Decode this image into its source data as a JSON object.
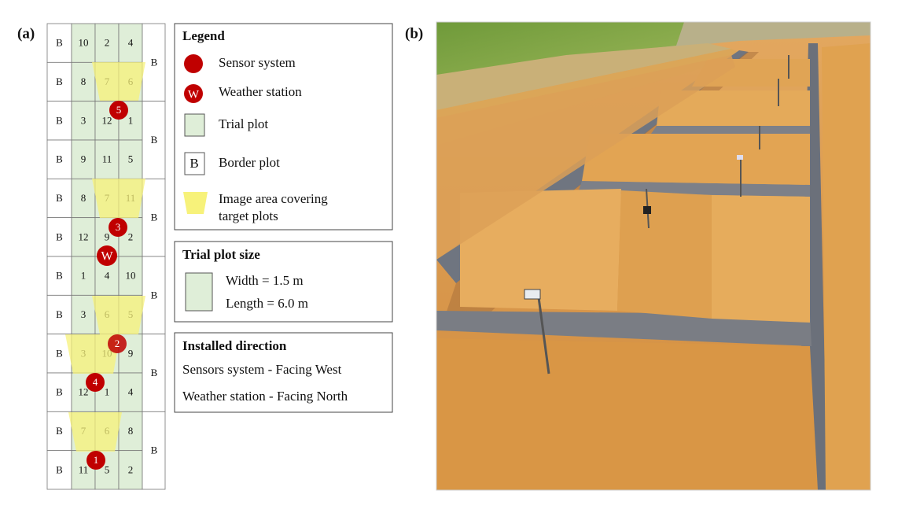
{
  "panel_a": {
    "label": "(a)",
    "grid": {
      "rows": [
        [
          "B",
          "10",
          "2",
          "4"
        ],
        [
          "B",
          "8",
          "7",
          "6"
        ],
        [
          "B",
          "3",
          "12",
          "1"
        ],
        [
          "B",
          "9",
          "11",
          "5"
        ],
        [
          "B",
          "8",
          "7",
          "11"
        ],
        [
          "B",
          "12",
          "9",
          "2"
        ],
        [
          "B",
          "1",
          "4",
          "10"
        ],
        [
          "B",
          "3",
          "6",
          "5"
        ],
        [
          "B",
          "3",
          "10",
          "9"
        ],
        [
          "B",
          "12",
          "1",
          "4"
        ],
        [
          "B",
          "7",
          "6",
          "8"
        ],
        [
          "B",
          "11",
          "5",
          "2"
        ]
      ],
      "right_border": [
        "B",
        "B",
        "B",
        "B",
        "B",
        "B"
      ]
    },
    "sensors": [
      "5",
      "3",
      "2",
      "4",
      "1"
    ],
    "weather": "W",
    "legend": {
      "title": "Legend",
      "sensor": "Sensor system",
      "weather_icon": "W",
      "weather": "Weather station",
      "trial": "Trial plot",
      "border_icon": "B",
      "border": "Border plot",
      "image_area": [
        "Image area covering",
        "target plots"
      ]
    },
    "plot_size": {
      "title": "Trial plot size",
      "width": "Width = 1.5 m",
      "length": "Length = 6.0 m"
    },
    "direction": {
      "title": "Installed direction",
      "lines": [
        "Sensors system - Facing West",
        "Weather station - Facing North"
      ]
    }
  },
  "panel_b": {
    "label": "(b)"
  }
}
